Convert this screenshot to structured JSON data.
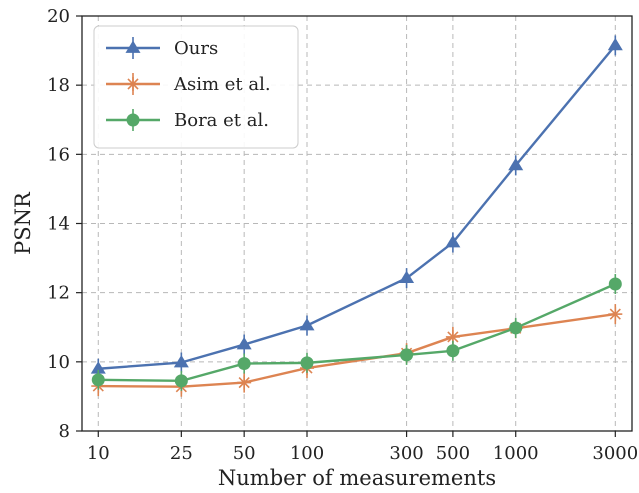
{
  "chart_data": {
    "type": "line",
    "title": "",
    "xlabel": "Number of measurements",
    "ylabel": "PSNR",
    "x": [
      10,
      25,
      50,
      100,
      300,
      500,
      1000,
      3000
    ],
    "x_tick_labels": [
      "10",
      "25",
      "50",
      "100",
      "300",
      "500",
      "1000",
      "3000"
    ],
    "x_scale": "log",
    "ylim": [
      8,
      20
    ],
    "y_ticks": [
      8,
      10,
      12,
      14,
      16,
      18,
      20
    ],
    "y_tick_labels": [
      "8",
      "10",
      "12",
      "14",
      "16",
      "18",
      "20"
    ],
    "grid": true,
    "legend_position": "top-left",
    "series": [
      {
        "name": "Ours",
        "color": "#4c72b0",
        "marker": "triangle",
        "values": [
          9.8,
          9.98,
          10.5,
          11.05,
          12.42,
          13.45,
          15.68,
          19.15
        ]
      },
      {
        "name": "Asim et al.",
        "color": "#dd8452",
        "marker": "star",
        "values": [
          9.3,
          9.28,
          9.4,
          9.82,
          10.25,
          10.72,
          10.97,
          11.38
        ]
      },
      {
        "name": "Bora et al.",
        "color": "#55a868",
        "marker": "circle",
        "values": [
          9.48,
          9.45,
          9.95,
          9.97,
          10.2,
          10.32,
          10.98,
          12.25
        ]
      }
    ]
  }
}
